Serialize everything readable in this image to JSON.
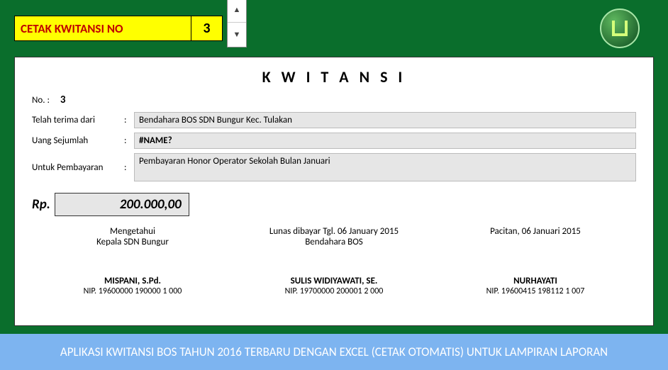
{
  "top": {
    "cetak_label": "CETAK KWITANSI NO",
    "cetak_number": "3"
  },
  "receipt": {
    "title": "K W I T A N S I",
    "no_label": "No.  :",
    "no_value": "3",
    "rows": {
      "terima_label": "Telah terima dari",
      "terima_value": "Bendahara BOS SDN Bungur Kec. Tulakan",
      "uang_label": "Uang Sejumlah",
      "uang_value": "#NAME?",
      "untuk_label": "Untuk Pembayaran",
      "untuk_value": "Pembayaran Honor Operator Sekolah Bulan Januari"
    },
    "rp_label": "Rp.",
    "amount": "200.000,00",
    "sig": {
      "left_line1": "Mengetahui",
      "left_line2": "Kepala SDN Bungur",
      "mid_line1": "Lunas dibayar Tgl. 06 January 2015",
      "mid_line2": "Bendahara BOS",
      "right_line1": "Pacitan, 06 Januari 2015",
      "left_name": "MISPANI, S.Pd.",
      "left_nip": "NIP. 19600000 190000 1 000",
      "mid_name": "SULIS WIDIYAWATI, SE.",
      "mid_nip": "NIP. 19700000 200001 2 000",
      "right_name": "NURHAYATI",
      "right_nip": "NIP. 19600415 198112 1 007"
    }
  },
  "footer": {
    "text": "APLIKASI KWITANSI BOS TAHUN 2016 TERBARU DENGAN EXCEL (CETAK OTOMATIS) UNTUK LAMPIRAN LAPORAN"
  },
  "colors": {
    "outer_bg": "#0a6e2c",
    "yellow": "#ffff00",
    "red_text": "#c00000",
    "field_bg": "#e6e6e6",
    "footer_bg": "#7db4f0"
  }
}
